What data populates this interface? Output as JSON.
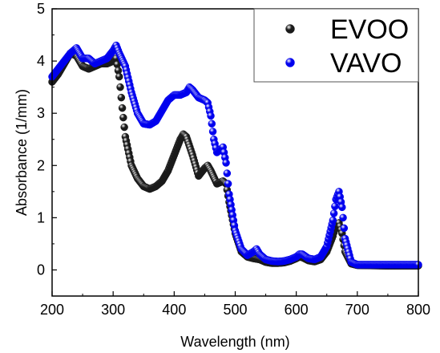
{
  "chart_data": {
    "type": "scatter",
    "title": "",
    "xlabel": "Wavelength (nm)",
    "ylabel": "Absorbance (1/mm)",
    "xlim": [
      200,
      800
    ],
    "ylim": [
      -0.5,
      5
    ],
    "x_ticks": [
      "200",
      "300",
      "400",
      "500",
      "600",
      "700",
      "800"
    ],
    "y_ticks": [
      "0",
      "1",
      "2",
      "3",
      "4",
      "5"
    ],
    "grid": false,
    "legend_position": "top-right",
    "series": [
      {
        "name": "EVOO",
        "color": "#1a1a1a",
        "points": [
          [
            200,
            3.6
          ],
          [
            210,
            3.75
          ],
          [
            220,
            3.95
          ],
          [
            230,
            4.15
          ],
          [
            240,
            4.1
          ],
          [
            250,
            3.9
          ],
          [
            260,
            3.85
          ],
          [
            270,
            3.9
          ],
          [
            280,
            3.95
          ],
          [
            290,
            3.95
          ],
          [
            300,
            4.0
          ],
          [
            305,
            4.05
          ],
          [
            310,
            3.7
          ],
          [
            315,
            3.1
          ],
          [
            320,
            2.55
          ],
          [
            330,
            2.0
          ],
          [
            340,
            1.75
          ],
          [
            350,
            1.6
          ],
          [
            360,
            1.55
          ],
          [
            370,
            1.6
          ],
          [
            380,
            1.7
          ],
          [
            390,
            1.9
          ],
          [
            400,
            2.2
          ],
          [
            410,
            2.5
          ],
          [
            415,
            2.6
          ],
          [
            420,
            2.55
          ],
          [
            430,
            2.2
          ],
          [
            440,
            1.8
          ],
          [
            450,
            1.95
          ],
          [
            455,
            2.0
          ],
          [
            460,
            1.9
          ],
          [
            470,
            1.65
          ],
          [
            480,
            1.7
          ],
          [
            485,
            1.65
          ],
          [
            490,
            1.3
          ],
          [
            500,
            0.7
          ],
          [
            510,
            0.35
          ],
          [
            520,
            0.25
          ],
          [
            530,
            0.22
          ],
          [
            540,
            0.2
          ],
          [
            550,
            0.15
          ],
          [
            560,
            0.13
          ],
          [
            570,
            0.13
          ],
          [
            580,
            0.14
          ],
          [
            590,
            0.17
          ],
          [
            600,
            0.22
          ],
          [
            605,
            0.25
          ],
          [
            610,
            0.24
          ],
          [
            620,
            0.18
          ],
          [
            630,
            0.16
          ],
          [
            640,
            0.2
          ],
          [
            650,
            0.35
          ],
          [
            660,
            0.65
          ],
          [
            665,
            0.85
          ],
          [
            670,
            0.9
          ],
          [
            675,
            0.7
          ],
          [
            680,
            0.35
          ],
          [
            690,
            0.12
          ],
          [
            700,
            0.09
          ],
          [
            750,
            0.08
          ],
          [
            800,
            0.08
          ]
        ]
      },
      {
        "name": "VAVO",
        "color": "#0000ee",
        "points": [
          [
            200,
            3.7
          ],
          [
            210,
            3.85
          ],
          [
            220,
            4.0
          ],
          [
            230,
            4.15
          ],
          [
            240,
            4.25
          ],
          [
            250,
            4.05
          ],
          [
            260,
            4.05
          ],
          [
            270,
            3.95
          ],
          [
            280,
            4.0
          ],
          [
            290,
            4.05
          ],
          [
            300,
            4.2
          ],
          [
            305,
            4.3
          ],
          [
            310,
            4.15
          ],
          [
            320,
            3.9
          ],
          [
            330,
            3.4
          ],
          [
            340,
            3.0
          ],
          [
            350,
            2.8
          ],
          [
            360,
            2.78
          ],
          [
            370,
            2.85
          ],
          [
            380,
            3.05
          ],
          [
            390,
            3.25
          ],
          [
            400,
            3.35
          ],
          [
            410,
            3.35
          ],
          [
            420,
            3.4
          ],
          [
            425,
            3.5
          ],
          [
            430,
            3.45
          ],
          [
            440,
            3.3
          ],
          [
            450,
            3.25
          ],
          [
            455,
            3.2
          ],
          [
            460,
            2.95
          ],
          [
            465,
            2.5
          ],
          [
            470,
            2.25
          ],
          [
            475,
            2.3
          ],
          [
            480,
            2.35
          ],
          [
            485,
            2.05
          ],
          [
            490,
            1.45
          ],
          [
            500,
            0.75
          ],
          [
            510,
            0.4
          ],
          [
            520,
            0.28
          ],
          [
            530,
            0.35
          ],
          [
            535,
            0.4
          ],
          [
            540,
            0.3
          ],
          [
            550,
            0.2
          ],
          [
            560,
            0.17
          ],
          [
            570,
            0.16
          ],
          [
            580,
            0.17
          ],
          [
            590,
            0.2
          ],
          [
            600,
            0.25
          ],
          [
            605,
            0.3
          ],
          [
            610,
            0.3
          ],
          [
            620,
            0.22
          ],
          [
            630,
            0.2
          ],
          [
            640,
            0.25
          ],
          [
            650,
            0.45
          ],
          [
            660,
            0.95
          ],
          [
            665,
            1.35
          ],
          [
            670,
            1.5
          ],
          [
            675,
            1.2
          ],
          [
            680,
            0.6
          ],
          [
            690,
            0.15
          ],
          [
            700,
            0.1
          ],
          [
            750,
            0.1
          ],
          [
            800,
            0.1
          ]
        ]
      }
    ]
  }
}
